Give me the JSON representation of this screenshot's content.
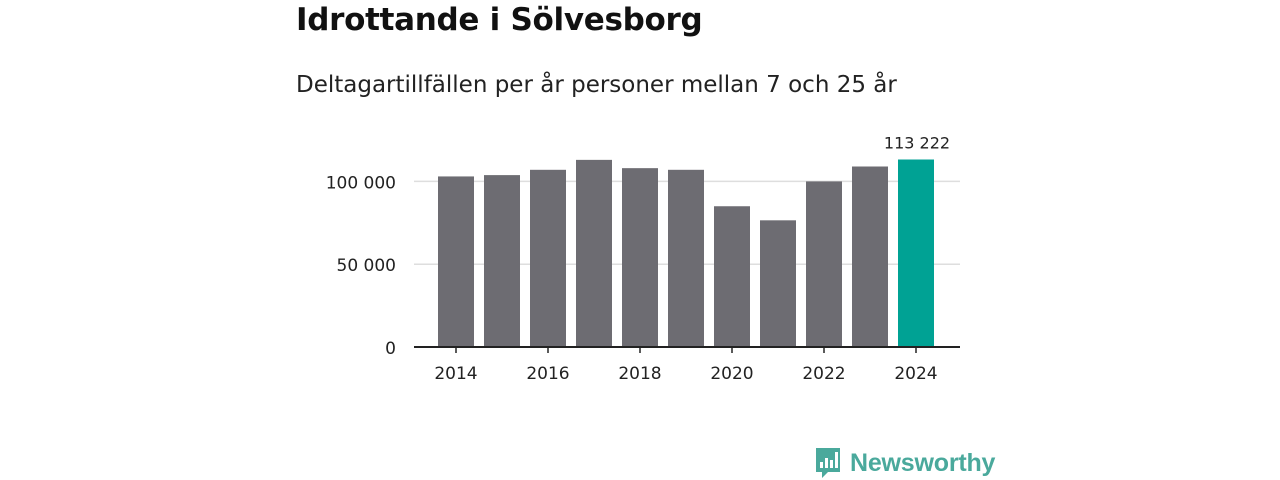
{
  "title": "Idrottande i Sölvesborg",
  "subtitle": "Deltagartillfällen per år personer mellan 7 och 25 år",
  "brand": {
    "name": "Newsworthy",
    "icon": "newsworthy-logo-icon",
    "color": "#4aa99c"
  },
  "chart_data": {
    "type": "bar",
    "title": "Idrottande i Sölvesborg",
    "subtitle": "Deltagartillfällen per år personer mellan 7 och 25 år",
    "xlabel": "",
    "ylabel": "",
    "categories": [
      "2014",
      "2015",
      "2016",
      "2017",
      "2018",
      "2019",
      "2020",
      "2021",
      "2022",
      "2023",
      "2024"
    ],
    "values": [
      103000,
      103800,
      107000,
      113000,
      108000,
      107000,
      85000,
      76500,
      100000,
      109000,
      113222
    ],
    "ylim": [
      0,
      125000
    ],
    "yticks": [
      0,
      50000,
      100000
    ],
    "ytick_labels": [
      "0",
      "50 000",
      "100 000"
    ],
    "xtick_labels": [
      "2014",
      "2016",
      "2018",
      "2020",
      "2022",
      "2024"
    ],
    "grid": true,
    "highlight": {
      "category": "2024",
      "label": "113 222"
    },
    "colors": {
      "bar": "#6d6c72",
      "highlight": "#00a294",
      "grid": "#dedede",
      "axis": "#222222"
    }
  }
}
